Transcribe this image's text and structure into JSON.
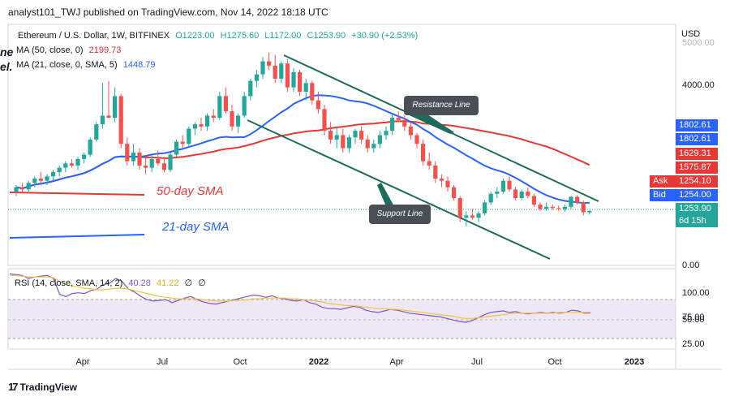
{
  "header": {
    "published_text": "analyst101_TWJ published on TradingView.com, Nov 14, 2022 18:18 UTC"
  },
  "symbol": {
    "name": "Ethereum / U.S. Dollar, 1W, BITFINEX",
    "open": "O1223.00",
    "high": "H1275.60",
    "low": "L1172.00",
    "close": "C1253.90",
    "change": "+30.90 (+2.53%)"
  },
  "indicators": {
    "ma50_label": "MA (50, close, 0)",
    "ma50_value": "2199.73",
    "ma21_label": "MA (21, close, 0, SMA, 5)",
    "ma21_value": "1448.79",
    "rsi_label": "RSI (14, close, SMA, 14, 2)",
    "rsi_value": "40.28",
    "rsi_ma_value": "41.22",
    "rsi_extra_1": "∅",
    "rsi_extra_2": "∅"
  },
  "price_axis": {
    "currency": "USD",
    "ticks": [
      "5000.00",
      "4000.00",
      "0.00"
    ],
    "tags": [
      {
        "text": "1802.61",
        "color": "#2962ff"
      },
      {
        "text": "1802.61",
        "color": "#2962ff"
      },
      {
        "text": "1629.31",
        "color": "#e53935"
      },
      {
        "text": "1575.87",
        "color": "#e53935"
      },
      {
        "text": "1254.10",
        "color": "#e53935"
      },
      {
        "text": "1254.00",
        "color": "#2962ff"
      },
      {
        "text": "1253.90",
        "color": "#26a69a"
      },
      {
        "text": "6d 15h",
        "color": "#26a69a"
      }
    ],
    "ask_label": "Ask",
    "bid_label": "Bid"
  },
  "rsi_axis": {
    "ticks": [
      "100.00",
      "75.00",
      "50.00",
      "25.00"
    ]
  },
  "time_axis": {
    "ticks": [
      "Apr",
      "Jul",
      "Oct",
      "2022",
      "Apr",
      "Jul",
      "Oct",
      "2023"
    ]
  },
  "annotations": {
    "resistance": "Resistance Line",
    "support": "Support Line",
    "sma50": "50-day SMA",
    "sma21": "21-day SMA"
  },
  "cut_text": {
    "line1": "ne",
    "line2": "el."
  },
  "footer": {
    "brand": "TradingView",
    "brand_mark": "17"
  },
  "colors": {
    "up": "#26a69a",
    "down": "#ef5350",
    "ma21": "#2962ff",
    "ma50": "#e53935",
    "channel": "#1e6b5c",
    "rsi": "#7e57c2",
    "rsi_ma": "#f5c242",
    "rsi_band": "#ede7f6"
  },
  "chart_data": [
    {
      "type": "candlestick",
      "title": "Ethereum / U.S. Dollar, 1W, BITFINEX",
      "x_ticks": [
        "Apr",
        "Jul",
        "Oct",
        "2022",
        "Apr",
        "Jul",
        "Oct",
        "2023"
      ],
      "y_ticks": [
        5000,
        4000,
        0
      ],
      "candles": [
        [
          1700,
          1850,
          1600,
          1800
        ],
        [
          1800,
          1900,
          1700,
          1750
        ],
        [
          1750,
          1950,
          1700,
          1900
        ],
        [
          1900,
          2050,
          1800,
          2000
        ],
        [
          2000,
          2150,
          1900,
          1950
        ],
        [
          1950,
          2100,
          1850,
          2050
        ],
        [
          2050,
          2200,
          1950,
          2150
        ],
        [
          2150,
          2300,
          2050,
          2250
        ],
        [
          2250,
          2400,
          2150,
          2350
        ],
        [
          2350,
          2450,
          2250,
          2300
        ],
        [
          2300,
          2500,
          2200,
          2450
        ],
        [
          2450,
          2600,
          2350,
          2550
        ],
        [
          2550,
          2950,
          2500,
          2900
        ],
        [
          2900,
          3300,
          2850,
          3250
        ],
        [
          3250,
          4200,
          3150,
          3450
        ],
        [
          3450,
          4250,
          3400,
          3400
        ],
        [
          3400,
          4100,
          3300,
          3900
        ],
        [
          3900,
          3950,
          2700,
          2800
        ],
        [
          2800,
          2950,
          2300,
          2400
        ],
        [
          2400,
          2800,
          2300,
          2600
        ],
        [
          2600,
          2700,
          2200,
          2300
        ],
        [
          2300,
          2500,
          2100,
          2250
        ],
        [
          2250,
          2550,
          2150,
          2450
        ],
        [
          2450,
          2650,
          2300,
          2350
        ],
        [
          2350,
          2500,
          2150,
          2200
        ],
        [
          2200,
          2600,
          2150,
          2550
        ],
        [
          2550,
          2900,
          2500,
          2850
        ],
        [
          2850,
          3000,
          2700,
          2800
        ],
        [
          2800,
          3200,
          2750,
          3150
        ],
        [
          3150,
          3300,
          3000,
          3250
        ],
        [
          3250,
          3400,
          3100,
          3200
        ],
        [
          3200,
          3500,
          3100,
          3450
        ],
        [
          3450,
          3600,
          3300,
          3400
        ],
        [
          3400,
          4000,
          3350,
          3900
        ],
        [
          3900,
          4100,
          3500,
          3550
        ],
        [
          3550,
          3700,
          3100,
          3200
        ],
        [
          3200,
          3500,
          3050,
          3450
        ],
        [
          3450,
          4000,
          3400,
          3900
        ],
        [
          3900,
          4300,
          3800,
          4250
        ],
        [
          4250,
          4500,
          4100,
          4400
        ],
        [
          4400,
          4800,
          4300,
          4700
        ],
        [
          4700,
          4900,
          4500,
          4600
        ],
        [
          4600,
          4850,
          4200,
          4300
        ],
        [
          4300,
          4700,
          4200,
          4650
        ],
        [
          4650,
          4750,
          4000,
          4100
        ],
        [
          4100,
          4550,
          4000,
          4450
        ],
        [
          4450,
          4500,
          3900,
          4000
        ],
        [
          4000,
          4300,
          3800,
          4200
        ],
        [
          4200,
          4250,
          3700,
          3800
        ],
        [
          3800,
          4000,
          3500,
          3600
        ],
        [
          3600,
          3700,
          3000,
          3100
        ],
        [
          3100,
          3300,
          2800,
          2900
        ],
        [
          2900,
          3200,
          2700,
          3000
        ],
        [
          3000,
          3150,
          2600,
          2700
        ],
        [
          2700,
          3000,
          2600,
          2950
        ],
        [
          2950,
          3150,
          2800,
          3100
        ],
        [
          3100,
          3200,
          2800,
          2900
        ],
        [
          2900,
          3000,
          2600,
          2700
        ],
        [
          2700,
          2900,
          2600,
          2800
        ],
        [
          2800,
          3100,
          2700,
          3000
        ],
        [
          3000,
          3200,
          2900,
          3100
        ],
        [
          3100,
          3500,
          3000,
          3400
        ],
        [
          3400,
          3550,
          3300,
          3350
        ],
        [
          3350,
          3450,
          3100,
          3200
        ],
        [
          3200,
          3300,
          2900,
          3000
        ],
        [
          3000,
          3050,
          2700,
          2800
        ],
        [
          2800,
          2900,
          2300,
          2400
        ],
        [
          2400,
          2600,
          2200,
          2300
        ],
        [
          2300,
          2400,
          1900,
          2000
        ],
        [
          2000,
          2100,
          1800,
          1950
        ],
        [
          1950,
          2050,
          1700,
          1800
        ],
        [
          1800,
          1850,
          1500,
          1550
        ],
        [
          1550,
          1600,
          1000,
          1100
        ],
        [
          1100,
          1250,
          900,
          1150
        ],
        [
          1150,
          1300,
          1050,
          1100
        ],
        [
          1100,
          1250,
          1000,
          1200
        ],
        [
          1200,
          1500,
          1150,
          1450
        ],
        [
          1450,
          1700,
          1400,
          1650
        ],
        [
          1650,
          1800,
          1550,
          1700
        ],
        [
          1700,
          2000,
          1650,
          1950
        ],
        [
          1950,
          2050,
          1700,
          1750
        ],
        [
          1750,
          1800,
          1500,
          1550
        ],
        [
          1550,
          1750,
          1500,
          1700
        ],
        [
          1700,
          1800,
          1550,
          1600
        ],
        [
          1600,
          1650,
          1350,
          1400
        ],
        [
          1400,
          1450,
          1250,
          1300
        ],
        [
          1300,
          1450,
          1250,
          1350
        ],
        [
          1350,
          1400,
          1280,
          1320
        ],
        [
          1320,
          1380,
          1250,
          1300
        ],
        [
          1300,
          1400,
          1230,
          1350
        ],
        [
          1350,
          1600,
          1300,
          1580
        ],
        [
          1580,
          1620,
          1400,
          1450
        ],
        [
          1450,
          1500,
          1150,
          1223
        ],
        [
          1223,
          1275.6,
          1172,
          1253.9
        ]
      ]
    },
    {
      "type": "line",
      "title": "RSI (14, close, SMA, 14, 2)",
      "y_ticks": [
        100,
        75,
        50,
        25
      ],
      "series": [
        {
          "name": "RSI",
          "values": [
            92,
            91,
            90,
            86,
            88,
            89,
            90,
            86,
            65,
            62,
            66,
            67,
            66,
            70,
            72,
            78,
            80,
            86,
            82,
            72,
            68,
            62,
            58,
            56,
            57,
            58,
            54,
            57,
            60,
            62,
            58,
            55,
            53,
            52,
            54,
            56,
            58,
            60,
            62,
            64,
            63,
            61,
            63,
            60,
            59,
            57,
            56,
            58,
            54,
            52,
            48,
            46,
            46,
            45,
            47,
            49,
            48,
            44,
            42,
            41,
            43,
            45,
            44,
            42,
            40,
            39,
            38,
            37,
            36,
            35,
            33,
            31,
            29,
            28,
            30,
            34,
            38,
            41,
            42,
            43,
            41,
            42,
            40,
            39,
            40,
            41,
            40,
            41,
            40,
            41,
            44,
            43,
            40,
            40.28
          ]
        },
        {
          "name": "RSI MA",
          "values": [
            90,
            90,
            89,
            88,
            88,
            88,
            88,
            87,
            82,
            78,
            76,
            75,
            73,
            72,
            71,
            71,
            72,
            73,
            73,
            72,
            70,
            68,
            66,
            64,
            62,
            61,
            60,
            59,
            59,
            59,
            59,
            58,
            57,
            56,
            56,
            56,
            57,
            57,
            58,
            59,
            59,
            60,
            60,
            60,
            60,
            59,
            59,
            58,
            57,
            56,
            55,
            53,
            52,
            51,
            50,
            50,
            49,
            48,
            47,
            46,
            46,
            45,
            45,
            44,
            43,
            42,
            41,
            40,
            39,
            38,
            37,
            36,
            34,
            33,
            33,
            34,
            35,
            36,
            37,
            38,
            39,
            40,
            40,
            40,
            40,
            40,
            40,
            40,
            41,
            41,
            41,
            41,
            41,
            41.22
          ]
        }
      ]
    }
  ]
}
